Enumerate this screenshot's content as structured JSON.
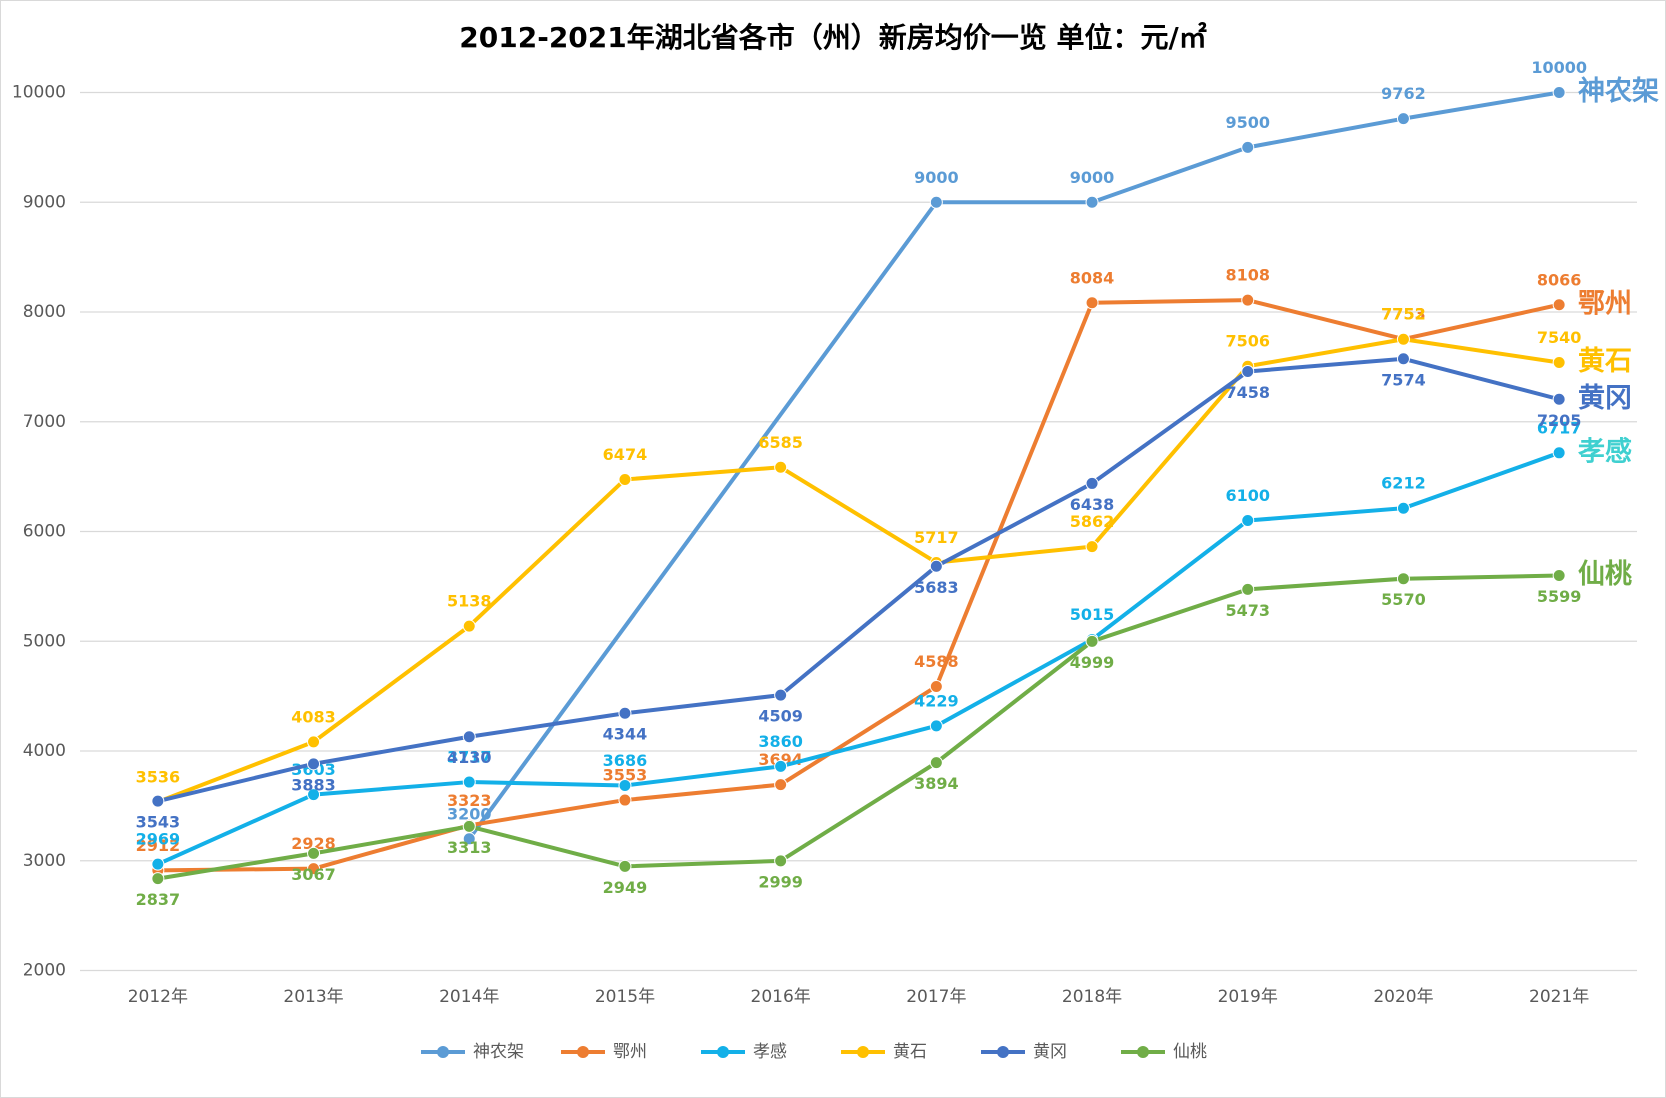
{
  "chart_data": {
    "type": "line",
    "title": "2012-2021年湖北省各市（州）新房均价一览    单位：元/㎡",
    "categories": [
      "2012年",
      "2013年",
      "2014年",
      "2015年",
      "2016年",
      "2017年",
      "2018年",
      "2019年",
      "2020年",
      "2021年"
    ],
    "series": [
      {
        "name": "神农架",
        "color": "#5b9bd5",
        "label_position": "above",
        "values": [
          null,
          null,
          3200,
          null,
          null,
          9000,
          9000,
          9500,
          9762,
          10000
        ]
      },
      {
        "name": "鄂州",
        "color": "#ed7d31",
        "label_position": "above",
        "values": [
          2912,
          2928,
          3323,
          3553,
          3694,
          4588,
          8084,
          8108,
          7753,
          8066
        ]
      },
      {
        "name": "孝感",
        "color": "#13b0e8",
        "label_color": "#3fd0d0",
        "label_position": "above",
        "values": [
          2969,
          3603,
          3717,
          3686,
          3860,
          4229,
          5015,
          6100,
          6212,
          6717
        ]
      },
      {
        "name": "黄石",
        "color": "#ffc000",
        "label_position": "above",
        "values": [
          3536,
          4083,
          5138,
          6474,
          6585,
          5717,
          5862,
          7506,
          7752,
          7540
        ]
      },
      {
        "name": "黄冈",
        "color": "#4472c4",
        "label_position": "below",
        "values": [
          3543,
          3883,
          4130,
          4344,
          4509,
          5683,
          6438,
          7458,
          7574,
          7205
        ]
      },
      {
        "name": "仙桃",
        "color": "#70ad47",
        "label_position": "below",
        "values": [
          2837,
          3067,
          3313,
          2949,
          2999,
          3894,
          4999,
          5473,
          5570,
          5599
        ]
      }
    ],
    "span_gaps": true,
    "ylim": [
      2000,
      10000
    ],
    "yticks": [
      2000,
      3000,
      4000,
      5000,
      6000,
      7000,
      8000,
      9000,
      10000
    ],
    "grid": true,
    "legend": "bottom"
  }
}
